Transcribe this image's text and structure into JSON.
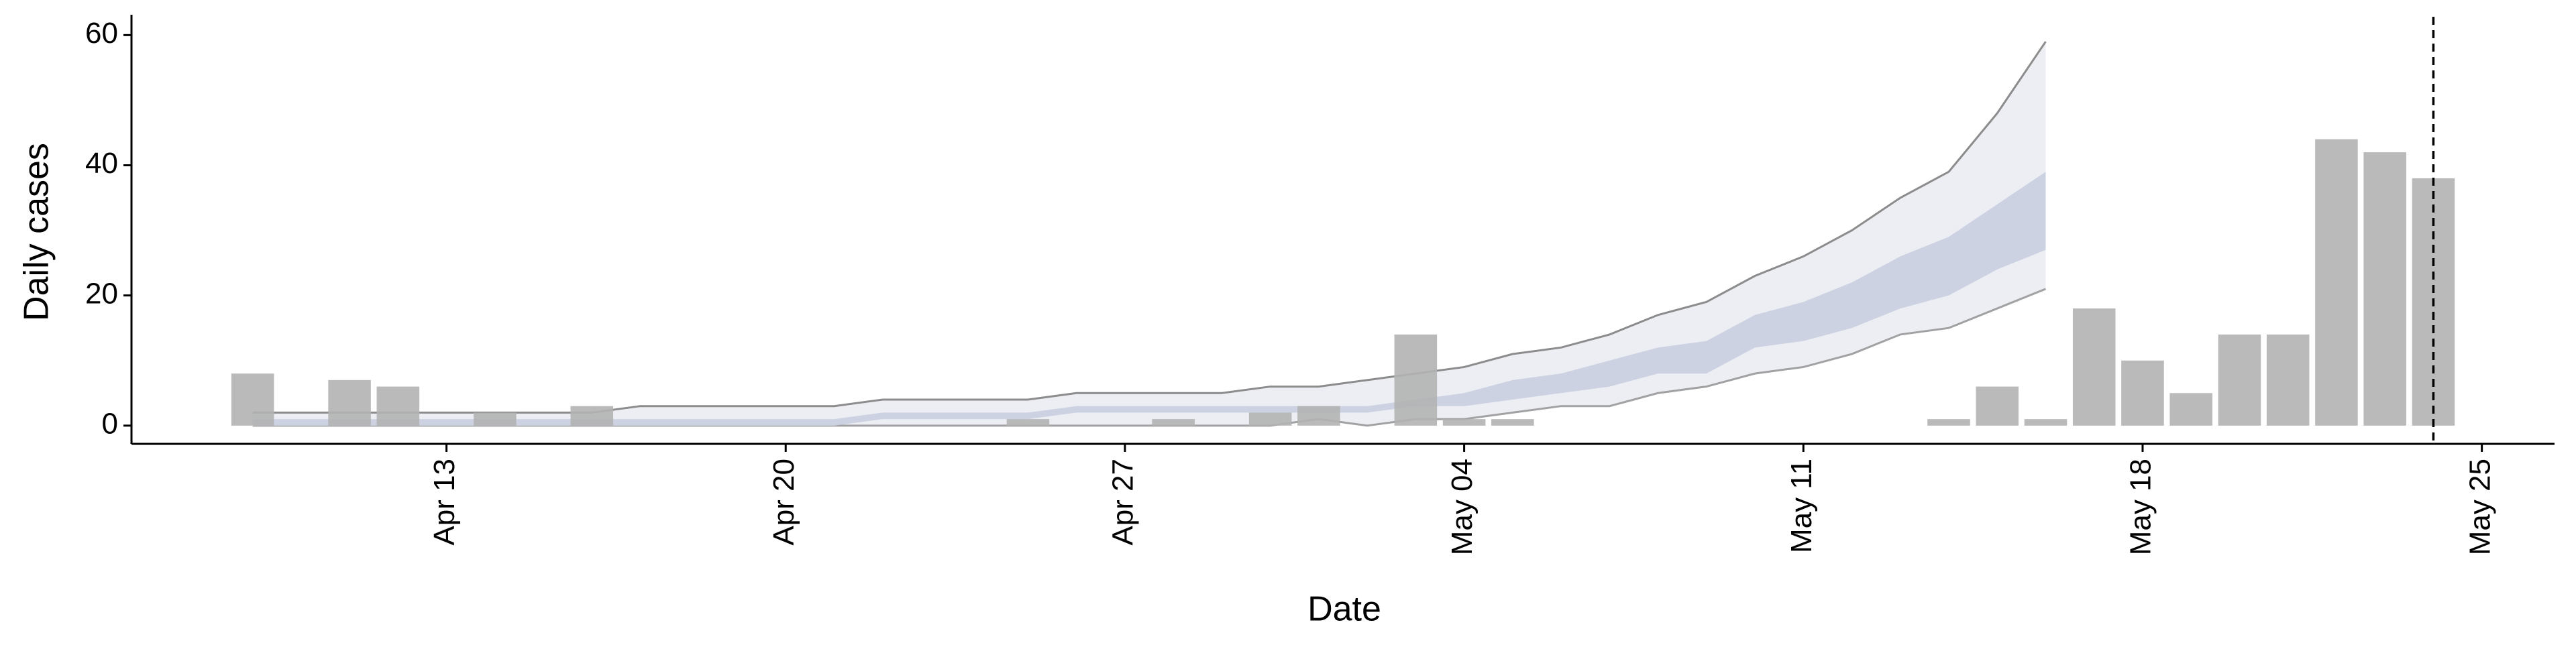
{
  "chart_data": {
    "type": "bar",
    "x_label": "Date",
    "y_label": "Daily cases",
    "categories": [
      null,
      null,
      null,
      null,
      null,
      null,
      "Apr 13",
      null,
      null,
      null,
      null,
      null,
      null,
      "Apr 20",
      null,
      null,
      null,
      null,
      null,
      null,
      "Apr 27",
      null,
      null,
      null,
      null,
      null,
      null,
      "May 04",
      null,
      null,
      null,
      null,
      null,
      null,
      "May 11",
      null,
      null,
      null,
      null,
      null,
      null,
      "May 18",
      null,
      null,
      null,
      null,
      null,
      null,
      "May 25",
      null
    ],
    "values": [
      null,
      null,
      8,
      0,
      7,
      6,
      0,
      2,
      0,
      3,
      0,
      0,
      0,
      0,
      0,
      0,
      0,
      0,
      1,
      0,
      0,
      1,
      0,
      2,
      3,
      0,
      14,
      1,
      1,
      0,
      0,
      0,
      0,
      0,
      0,
      0,
      0,
      1,
      6,
      1,
      18,
      10,
      5,
      14,
      14,
      44,
      42,
      38,
      null,
      null
    ],
    "color": "#b3b3b3",
    "bands": [
      {
        "color": "#eceef4",
        "line_color": "#8c8c8c",
        "upper": [
          null,
          null,
          2,
          2,
          2,
          2,
          2,
          2,
          2,
          2,
          3,
          3,
          3,
          3,
          3,
          4,
          4,
          4,
          4,
          5,
          5,
          5,
          5,
          6,
          6,
          7,
          8,
          9,
          11,
          12,
          14,
          17,
          19,
          23,
          26,
          30,
          35,
          39,
          48,
          59,
          null,
          null,
          null,
          null,
          null,
          null,
          null,
          null,
          null,
          null
        ],
        "lower": [
          null,
          null,
          0,
          0,
          0,
          0,
          0,
          0,
          0,
          0,
          0,
          0,
          0,
          0,
          0,
          0,
          0,
          0,
          0,
          0,
          0,
          0,
          0,
          0,
          1,
          0,
          1,
          1,
          2,
          3,
          3,
          5,
          6,
          8,
          9,
          11,
          14,
          15,
          18,
          21,
          null,
          null,
          null,
          null,
          null,
          null,
          null,
          null,
          null,
          null
        ]
      },
      {
        "color": "#ccd2e1",
        "line_color": "none",
        "upper": [
          null,
          null,
          1,
          1,
          1,
          1,
          1,
          1,
          1,
          1,
          1,
          1,
          1,
          1,
          1,
          2,
          2,
          2,
          2,
          3,
          3,
          3,
          3,
          3,
          3,
          3,
          4,
          5,
          7,
          8,
          10,
          12,
          13,
          17,
          19,
          22,
          26,
          29,
          34,
          39,
          null,
          null,
          null,
          null,
          null,
          null,
          null,
          null,
          null,
          null
        ],
        "lower": [
          null,
          null,
          0,
          0,
          0,
          0,
          0,
          0,
          0,
          0,
          0,
          0,
          0,
          0,
          0,
          1,
          1,
          1,
          1,
          2,
          2,
          2,
          2,
          2,
          2,
          2,
          3,
          3,
          4,
          5,
          6,
          8,
          8,
          12,
          13,
          15,
          18,
          20,
          24,
          27,
          null,
          null,
          null,
          null,
          null,
          null,
          null,
          null,
          null,
          null
        ]
      }
    ],
    "vline": 47,
    "ylim": [
      -2.8,
      62.3
    ],
    "yticks": [
      0,
      20,
      40,
      60
    ]
  }
}
